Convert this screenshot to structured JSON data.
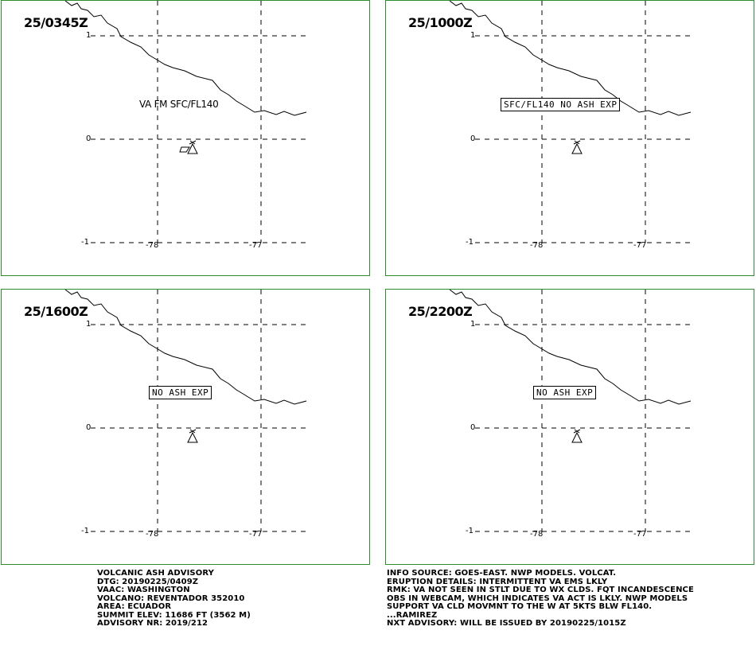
{
  "panels": [
    {
      "time": "25/0345Z",
      "label": "VA FM SFC/FL140",
      "boxed": false
    },
    {
      "time": "25/1000Z",
      "label": "SFC/FL140 NO ASH EXP",
      "boxed": true
    },
    {
      "time": "25/1600Z",
      "label": "NO ASH EXP",
      "boxed": true
    },
    {
      "time": "25/2200Z",
      "label": "NO ASH EXP",
      "boxed": true
    }
  ],
  "axis": {
    "lat_labels": [
      "1",
      "0",
      "-1"
    ],
    "lon_labels": [
      "-78",
      "-77"
    ]
  },
  "advisory_left": [
    "VOLCANIC ASH ADVISORY",
    "DTG: 20190225/0409Z",
    "VAAC: WASHINGTON",
    "VOLCANO: REVENTADOR 352010",
    "AREA: ECUADOR",
    "SUMMIT ELEV: 11686 FT (3562 M)",
    "ADVISORY NR: 2019/212"
  ],
  "advisory_right": [
    "INFO SOURCE: GOES-EAST. NWP MODELS. VOLCAT.",
    "ERUPTION DETAILS: INTERMITTENT VA EMS LKLY",
    "RMK: VA NOT SEEN IN STLT DUE TO WX CLDS. FQT INCANDESCENCE",
    "OBS IN WEBCAM, WHICH INDICATES VA ACT IS LKLY. NWP MODELS",
    "SUPPORT VA CLD MOVMNT TO THE W AT 5KTS BLW FL140.",
    "...RAMIREZ",
    "NXT ADVISORY: WILL BE ISSUED BY 20190225/1015Z"
  ]
}
